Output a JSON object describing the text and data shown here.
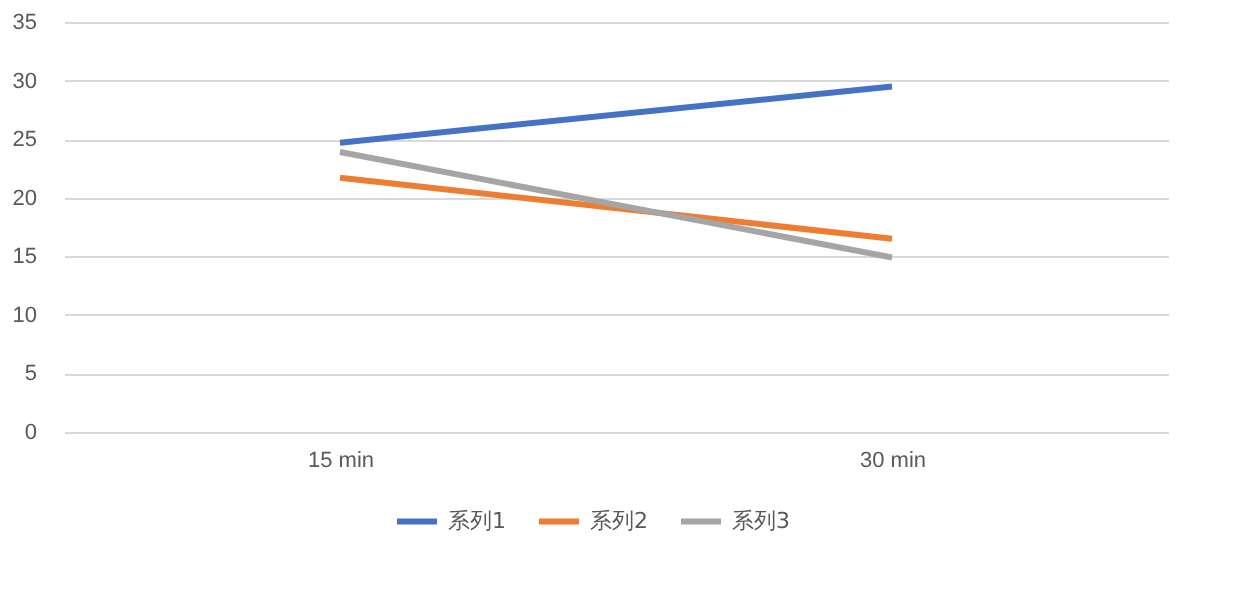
{
  "chart_data": {
    "type": "line",
    "categories": [
      "15 min",
      "30 min"
    ],
    "series": [
      {
        "name": "系列1",
        "color": "#4472c4",
        "values": [
          24.7,
          29.5
        ]
      },
      {
        "name": "系列2",
        "color": "#ed7d31",
        "values": [
          21.7,
          16.5
        ]
      },
      {
        "name": "系列3",
        "color": "#a5a5a5",
        "values": [
          23.9,
          14.9
        ]
      }
    ],
    "ylim": [
      0,
      35
    ],
    "yticks": [
      0,
      5,
      10,
      15,
      20,
      25,
      30,
      35
    ],
    "grid": "y",
    "legend": "bottom",
    "marker": "none",
    "line_style": "solid"
  }
}
